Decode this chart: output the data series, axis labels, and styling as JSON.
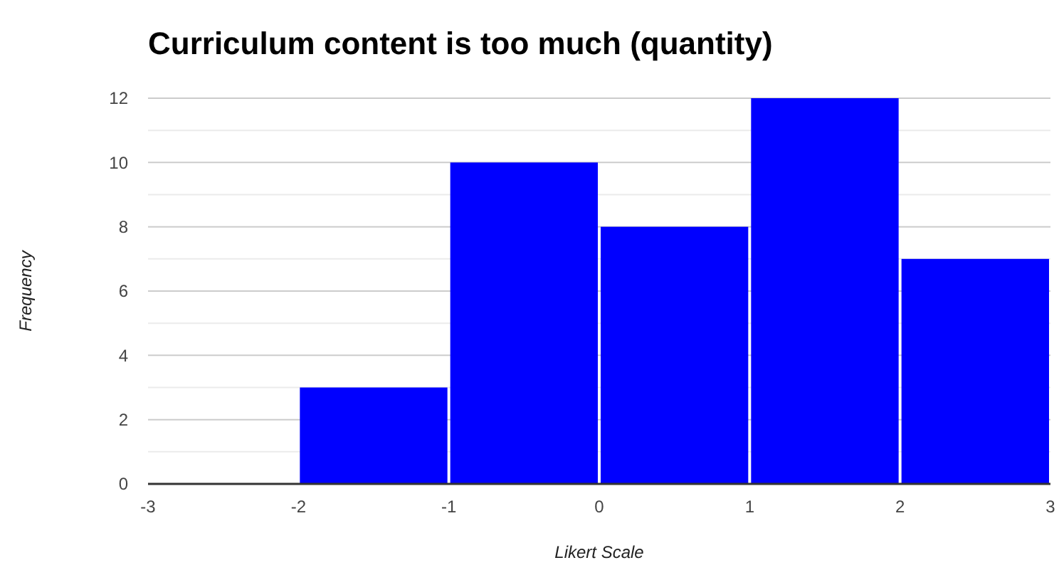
{
  "chart_data": {
    "type": "histogram",
    "title": "Curriculum content is too much (quantity)",
    "xlabel": "Likert Scale",
    "ylabel": "Frequency",
    "bins": [
      -3,
      -2,
      -1,
      0,
      1,
      2,
      3
    ],
    "values": [
      0,
      3,
      10,
      8,
      12,
      7
    ],
    "color": "#0000ff",
    "xlim": [
      -3,
      3
    ],
    "xticks": [
      -3,
      -2,
      -1,
      0,
      1,
      2,
      3
    ],
    "ylim": [
      0,
      12
    ],
    "yticks": [
      0,
      {
        "value": 1,
        "label": null
      },
      2,
      {
        "value": 3,
        "label": null
      },
      4,
      {
        "value": 5,
        "label": null
      },
      6,
      {
        "value": 7,
        "label": null
      },
      8,
      {
        "value": 9,
        "label": null
      },
      10,
      {
        "value": 11,
        "label": null
      },
      12
    ],
    "grid": "y"
  }
}
